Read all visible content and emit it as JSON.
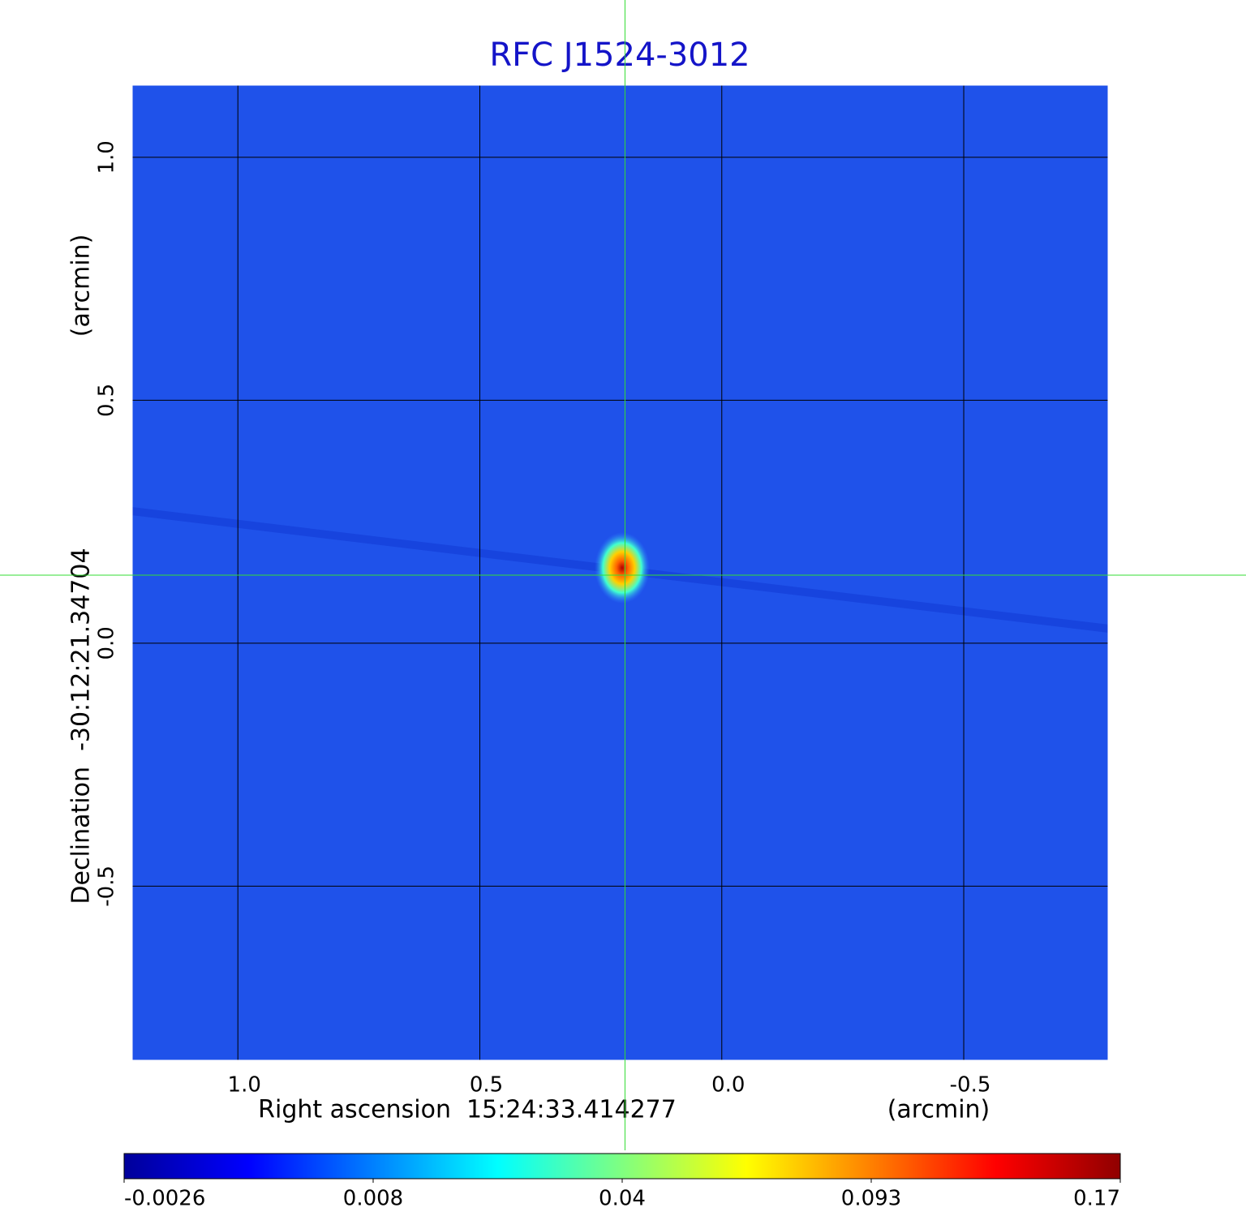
{
  "chart_data": {
    "type": "image",
    "title": "RFC J1524-3012",
    "x_label": "Right ascension  15:24:33.414277",
    "x_unit": "(arcmin)",
    "y_label": "Declination  -30:12:21.34704",
    "y_unit": "(arcmin)",
    "xlim": [
      1.22,
      -0.8
    ],
    "ylim": [
      -0.86,
      1.15
    ],
    "xticks": [
      {
        "value": 1,
        "label": "1.0"
      },
      0.5,
      {
        "value": 0,
        "label": "0.0"
      },
      -0.5
    ],
    "yticks": [
      {
        "value": 1,
        "label": "1.0"
      },
      0.5,
      {
        "value": 0,
        "label": "0.0"
      },
      -0.5
    ],
    "grid": true,
    "background_color": "#1f52ea",
    "crosshair": {
      "x": 0.2,
      "y": 0.14,
      "color": "#33dd33"
    },
    "colorbar": {
      "ticks": [
        -0.0026,
        0.008,
        0.04,
        0.093,
        0.17
      ],
      "colors": [
        "#00009a",
        "#0000ff",
        "#0080ff",
        "#00ffff",
        "#80ff80",
        "#ffff00",
        "#ff8000",
        "#ff0000",
        "#900000"
      ]
    }
  }
}
